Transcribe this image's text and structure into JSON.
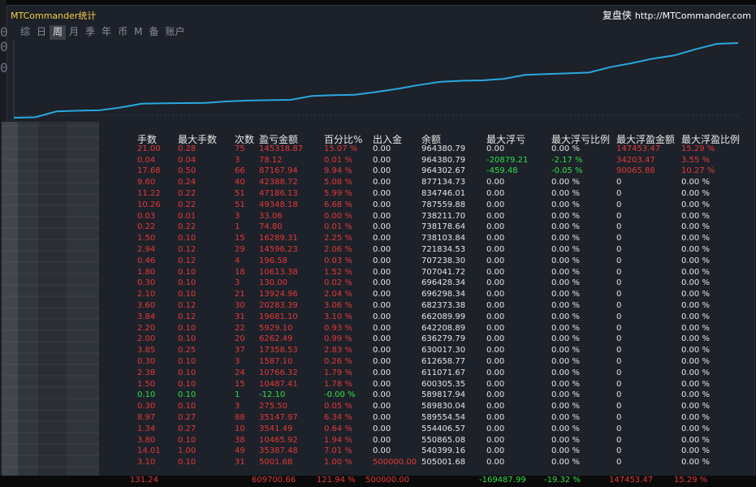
{
  "window": {
    "title": "MTCommander统计",
    "brand_cn": "复盘侠",
    "brand_url": "http://MTCommander.com"
  },
  "tabs": [
    {
      "label": "综",
      "active": false
    },
    {
      "label": "日",
      "active": false
    },
    {
      "label": "周",
      "active": true
    },
    {
      "label": "月",
      "active": false
    },
    {
      "label": "季",
      "active": false
    },
    {
      "label": "年",
      "active": false
    },
    {
      "label": "币",
      "active": false
    },
    {
      "label": "M",
      "active": false
    },
    {
      "label": "备",
      "active": false
    },
    {
      "label": "账户",
      "active": false
    }
  ],
  "side_numbers": [
    "0",
    "0",
    "0"
  ],
  "colors": {
    "profit": "#e23a3a",
    "loss": "#2fe04a",
    "neutral": "#e6e6e6",
    "curve": "#29a8e0"
  },
  "equity_curve": {
    "points": [
      0,
      0.5,
      8,
      9,
      9.5,
      13,
      18,
      18.5,
      18.8,
      19,
      21,
      22,
      22.5,
      23,
      28,
      29,
      29.5,
      33,
      37,
      42,
      46,
      47.5,
      48,
      50,
      55,
      56,
      57,
      58,
      65,
      70,
      76,
      80,
      88,
      95,
      96
    ]
  },
  "table": {
    "headers": [
      "手数",
      "最大手数",
      "次数",
      "盈亏金额",
      "百分比%",
      "出入金",
      "余额",
      "最大浮亏",
      "最大浮亏比例",
      "最大浮盈金额",
      "最大浮盈比例"
    ],
    "rows": [
      {
        "cells": [
          "21.00",
          "0.28",
          "75",
          "145318.87",
          "15.07 %",
          "0.00",
          "964380.79",
          "0.00",
          "0.00 %",
          "147453.47",
          "15.29 %"
        ],
        "tone": [
          "red",
          "red",
          "red",
          "red",
          "red",
          "white",
          "white",
          "white",
          "white",
          "red",
          "red"
        ]
      },
      {
        "cells": [
          "0.04",
          "0.04",
          "3",
          "78.12",
          "0.01 %",
          "0.00",
          "964380.79",
          "-20879.21",
          "-2.17 %",
          "34203.47",
          "3.55 %"
        ],
        "tone": [
          "red",
          "red",
          "red",
          "red",
          "red",
          "white",
          "white",
          "green",
          "green",
          "red",
          "red"
        ]
      },
      {
        "cells": [
          "17.68",
          "0.50",
          "66",
          "87167.94",
          "9.94 %",
          "0.00",
          "964302.67",
          "-459.48",
          "-0.05 %",
          "90065.88",
          "10.27 %"
        ],
        "tone": [
          "red",
          "red",
          "red",
          "red",
          "red",
          "white",
          "white",
          "green",
          "green",
          "red",
          "red"
        ]
      },
      {
        "cells": [
          "9.60",
          "0.24",
          "40",
          "42388.72",
          "5.08 %",
          "0.00",
          "877134.73",
          "0.00",
          "0.00 %",
          "0",
          "0.00 %"
        ],
        "tone": [
          "red",
          "red",
          "red",
          "red",
          "red",
          "white",
          "white",
          "white",
          "white",
          "white",
          "white"
        ]
      },
      {
        "cells": [
          "11.22",
          "0.22",
          "51",
          "47186.13",
          "5.99 %",
          "0.00",
          "834746.01",
          "0.00",
          "0.00 %",
          "0",
          "0.00 %"
        ],
        "tone": [
          "red",
          "red",
          "red",
          "red",
          "red",
          "white",
          "white",
          "white",
          "white",
          "white",
          "white"
        ]
      },
      {
        "cells": [
          "10.26",
          "0.22",
          "51",
          "49348.18",
          "6.68 %",
          "0.00",
          "787559.88",
          "0.00",
          "0.00 %",
          "0",
          "0.00 %"
        ],
        "tone": [
          "red",
          "red",
          "red",
          "red",
          "red",
          "white",
          "white",
          "white",
          "white",
          "white",
          "white"
        ]
      },
      {
        "cells": [
          "0.03",
          "0.01",
          "3",
          "33.06",
          "0.00 %",
          "0.00",
          "738211.70",
          "0.00",
          "0.00 %",
          "0",
          "0.00 %"
        ],
        "tone": [
          "red",
          "red",
          "red",
          "red",
          "red",
          "white",
          "white",
          "white",
          "white",
          "white",
          "white"
        ]
      },
      {
        "cells": [
          "0.22",
          "0.22",
          "1",
          "74.80",
          "0.01 %",
          "0.00",
          "738178.64",
          "0.00",
          "0.00 %",
          "0",
          "0.00 %"
        ],
        "tone": [
          "red",
          "red",
          "red",
          "red",
          "red",
          "white",
          "white",
          "white",
          "white",
          "white",
          "white"
        ]
      },
      {
        "cells": [
          "1.50",
          "0.10",
          "15",
          "16289.31",
          "2.25 %",
          "0.00",
          "738103.84",
          "0.00",
          "0.00 %",
          "0",
          "0.00 %"
        ],
        "tone": [
          "red",
          "red",
          "red",
          "red",
          "red",
          "white",
          "white",
          "white",
          "white",
          "white",
          "white"
        ]
      },
      {
        "cells": [
          "2.94",
          "0.12",
          "29",
          "14596.23",
          "2.06 %",
          "0.00",
          "721834.53",
          "0.00",
          "0.00 %",
          "0",
          "0.00 %"
        ],
        "tone": [
          "red",
          "red",
          "red",
          "red",
          "red",
          "white",
          "white",
          "white",
          "white",
          "white",
          "white"
        ]
      },
      {
        "cells": [
          "0.46",
          "0.12",
          "4",
          "196.58",
          "0.03 %",
          "0.00",
          "707238.30",
          "0.00",
          "0.00 %",
          "0",
          "0.00 %"
        ],
        "tone": [
          "red",
          "red",
          "red",
          "red",
          "red",
          "white",
          "white",
          "white",
          "white",
          "white",
          "white"
        ]
      },
      {
        "cells": [
          "1.80",
          "0.10",
          "18",
          "10613.38",
          "1.52 %",
          "0.00",
          "707041.72",
          "0.00",
          "0.00 %",
          "0",
          "0.00 %"
        ],
        "tone": [
          "red",
          "red",
          "red",
          "red",
          "red",
          "white",
          "white",
          "white",
          "white",
          "white",
          "white"
        ]
      },
      {
        "cells": [
          "0.30",
          "0.10",
          "3",
          "130.00",
          "0.02 %",
          "0.00",
          "696428.34",
          "0.00",
          "0.00 %",
          "0",
          "0.00 %"
        ],
        "tone": [
          "red",
          "red",
          "red",
          "red",
          "red",
          "white",
          "white",
          "white",
          "white",
          "white",
          "white"
        ]
      },
      {
        "cells": [
          "2.10",
          "0.10",
          "21",
          "13924.96",
          "2.04 %",
          "0.00",
          "696298.34",
          "0.00",
          "0.00 %",
          "0",
          "0.00 %"
        ],
        "tone": [
          "red",
          "red",
          "red",
          "red",
          "red",
          "white",
          "white",
          "white",
          "white",
          "white",
          "white"
        ]
      },
      {
        "cells": [
          "3.60",
          "0.12",
          "30",
          "20283.39",
          "3.06 %",
          "0.00",
          "682373.38",
          "0.00",
          "0.00 %",
          "0",
          "0.00 %"
        ],
        "tone": [
          "red",
          "red",
          "red",
          "red",
          "red",
          "white",
          "white",
          "white",
          "white",
          "white",
          "white"
        ]
      },
      {
        "cells": [
          "3.84",
          "0.12",
          "31",
          "19681.10",
          "3.10 %",
          "0.00",
          "662089.99",
          "0.00",
          "0.00 %",
          "0",
          "0.00 %"
        ],
        "tone": [
          "red",
          "red",
          "red",
          "red",
          "red",
          "white",
          "white",
          "white",
          "white",
          "white",
          "white"
        ]
      },
      {
        "cells": [
          "2.20",
          "0.10",
          "22",
          "5929.10",
          "0.93 %",
          "0.00",
          "642208.89",
          "0.00",
          "0.00 %",
          "0",
          "0.00 %"
        ],
        "tone": [
          "red",
          "red",
          "red",
          "red",
          "red",
          "white",
          "white",
          "white",
          "white",
          "white",
          "white"
        ]
      },
      {
        "cells": [
          "2.00",
          "0.10",
          "20",
          "6262.49",
          "0.99 %",
          "0.00",
          "636279.79",
          "0.00",
          "0.00 %",
          "0",
          "0.00 %"
        ],
        "tone": [
          "red",
          "red",
          "red",
          "red",
          "red",
          "white",
          "white",
          "white",
          "white",
          "white",
          "white"
        ]
      },
      {
        "cells": [
          "3.85",
          "0.25",
          "37",
          "17358.53",
          "2.83 %",
          "0.00",
          "630017.30",
          "0.00",
          "0.00 %",
          "0",
          "0.00 %"
        ],
        "tone": [
          "red",
          "red",
          "red",
          "red",
          "red",
          "white",
          "white",
          "white",
          "white",
          "white",
          "white"
        ]
      },
      {
        "cells": [
          "0.30",
          "0.10",
          "3",
          "1587.10",
          "0.26 %",
          "0.00",
          "612658.77",
          "0.00",
          "0.00 %",
          "0",
          "0.00 %"
        ],
        "tone": [
          "red",
          "red",
          "red",
          "red",
          "red",
          "white",
          "white",
          "white",
          "white",
          "white",
          "white"
        ]
      },
      {
        "cells": [
          "2.38",
          "0.10",
          "24",
          "10766.32",
          "1.79 %",
          "0.00",
          "611071.67",
          "0.00",
          "0.00 %",
          "0",
          "0.00 %"
        ],
        "tone": [
          "red",
          "red",
          "red",
          "red",
          "red",
          "white",
          "white",
          "white",
          "white",
          "white",
          "white"
        ]
      },
      {
        "cells": [
          "1.50",
          "0.10",
          "15",
          "10487.41",
          "1.78 %",
          "0.00",
          "600305.35",
          "0.00",
          "0.00 %",
          "0",
          "0.00 %"
        ],
        "tone": [
          "red",
          "red",
          "red",
          "red",
          "red",
          "white",
          "white",
          "white",
          "white",
          "white",
          "white"
        ]
      },
      {
        "cells": [
          "0.10",
          "0.10",
          "1",
          "-12.10",
          "-0.00 %",
          "0.00",
          "589817.94",
          "0.00",
          "0.00 %",
          "0",
          "0.00 %"
        ],
        "tone": [
          "green",
          "green",
          "green",
          "green",
          "green",
          "white",
          "white",
          "white",
          "white",
          "white",
          "white"
        ]
      },
      {
        "cells": [
          "0.30",
          "0.10",
          "3",
          "275.50",
          "0.05 %",
          "0.00",
          "589830.04",
          "0.00",
          "0.00 %",
          "0",
          "0.00 %"
        ],
        "tone": [
          "red",
          "red",
          "red",
          "red",
          "red",
          "white",
          "white",
          "white",
          "white",
          "white",
          "white"
        ]
      },
      {
        "cells": [
          "8.97",
          "0.27",
          "88",
          "35147.97",
          "6.34 %",
          "0.00",
          "589554.54",
          "0.00",
          "0.00 %",
          "0",
          "0.00 %"
        ],
        "tone": [
          "red",
          "red",
          "red",
          "red",
          "red",
          "white",
          "white",
          "white",
          "white",
          "white",
          "white"
        ]
      },
      {
        "cells": [
          "1.34",
          "0.27",
          "10",
          "3541.49",
          "0.64 %",
          "0.00",
          "554406.57",
          "0.00",
          "0.00 %",
          "0",
          "0.00 %"
        ],
        "tone": [
          "red",
          "red",
          "red",
          "red",
          "red",
          "white",
          "white",
          "white",
          "white",
          "white",
          "white"
        ]
      },
      {
        "cells": [
          "3.80",
          "0.10",
          "38",
          "10465.92",
          "1.94 %",
          "0.00",
          "550865.08",
          "0.00",
          "0.00 %",
          "0",
          "0.00 %"
        ],
        "tone": [
          "red",
          "red",
          "red",
          "red",
          "red",
          "white",
          "white",
          "white",
          "white",
          "white",
          "white"
        ]
      },
      {
        "cells": [
          "14.01",
          "1.00",
          "49",
          "35387.48",
          "7.01 %",
          "0.00",
          "540399.16",
          "0.00",
          "0.00 %",
          "0",
          "0.00 %"
        ],
        "tone": [
          "red",
          "red",
          "red",
          "red",
          "red",
          "white",
          "white",
          "white",
          "white",
          "white",
          "white"
        ]
      },
      {
        "cells": [
          "3.10",
          "0.10",
          "31",
          "5001.68",
          "1.00 %",
          "500000.00",
          "505001.68",
          "0.00",
          "0.00 %",
          "0",
          "0.00 %"
        ],
        "tone": [
          "red",
          "red",
          "red",
          "red",
          "red",
          "red",
          "white",
          "white",
          "white",
          "white",
          "white"
        ]
      }
    ],
    "totals": {
      "cells": [
        "131.24",
        "",
        "",
        "609700.66",
        "121.94 %",
        "500000.00",
        "",
        "-169487.99",
        "-19.32 %",
        "147453.47",
        "15.29 %"
      ],
      "tone": [
        "red",
        "red",
        "red",
        "red",
        "red",
        "red",
        "white",
        "green",
        "green",
        "red",
        "red"
      ]
    }
  }
}
